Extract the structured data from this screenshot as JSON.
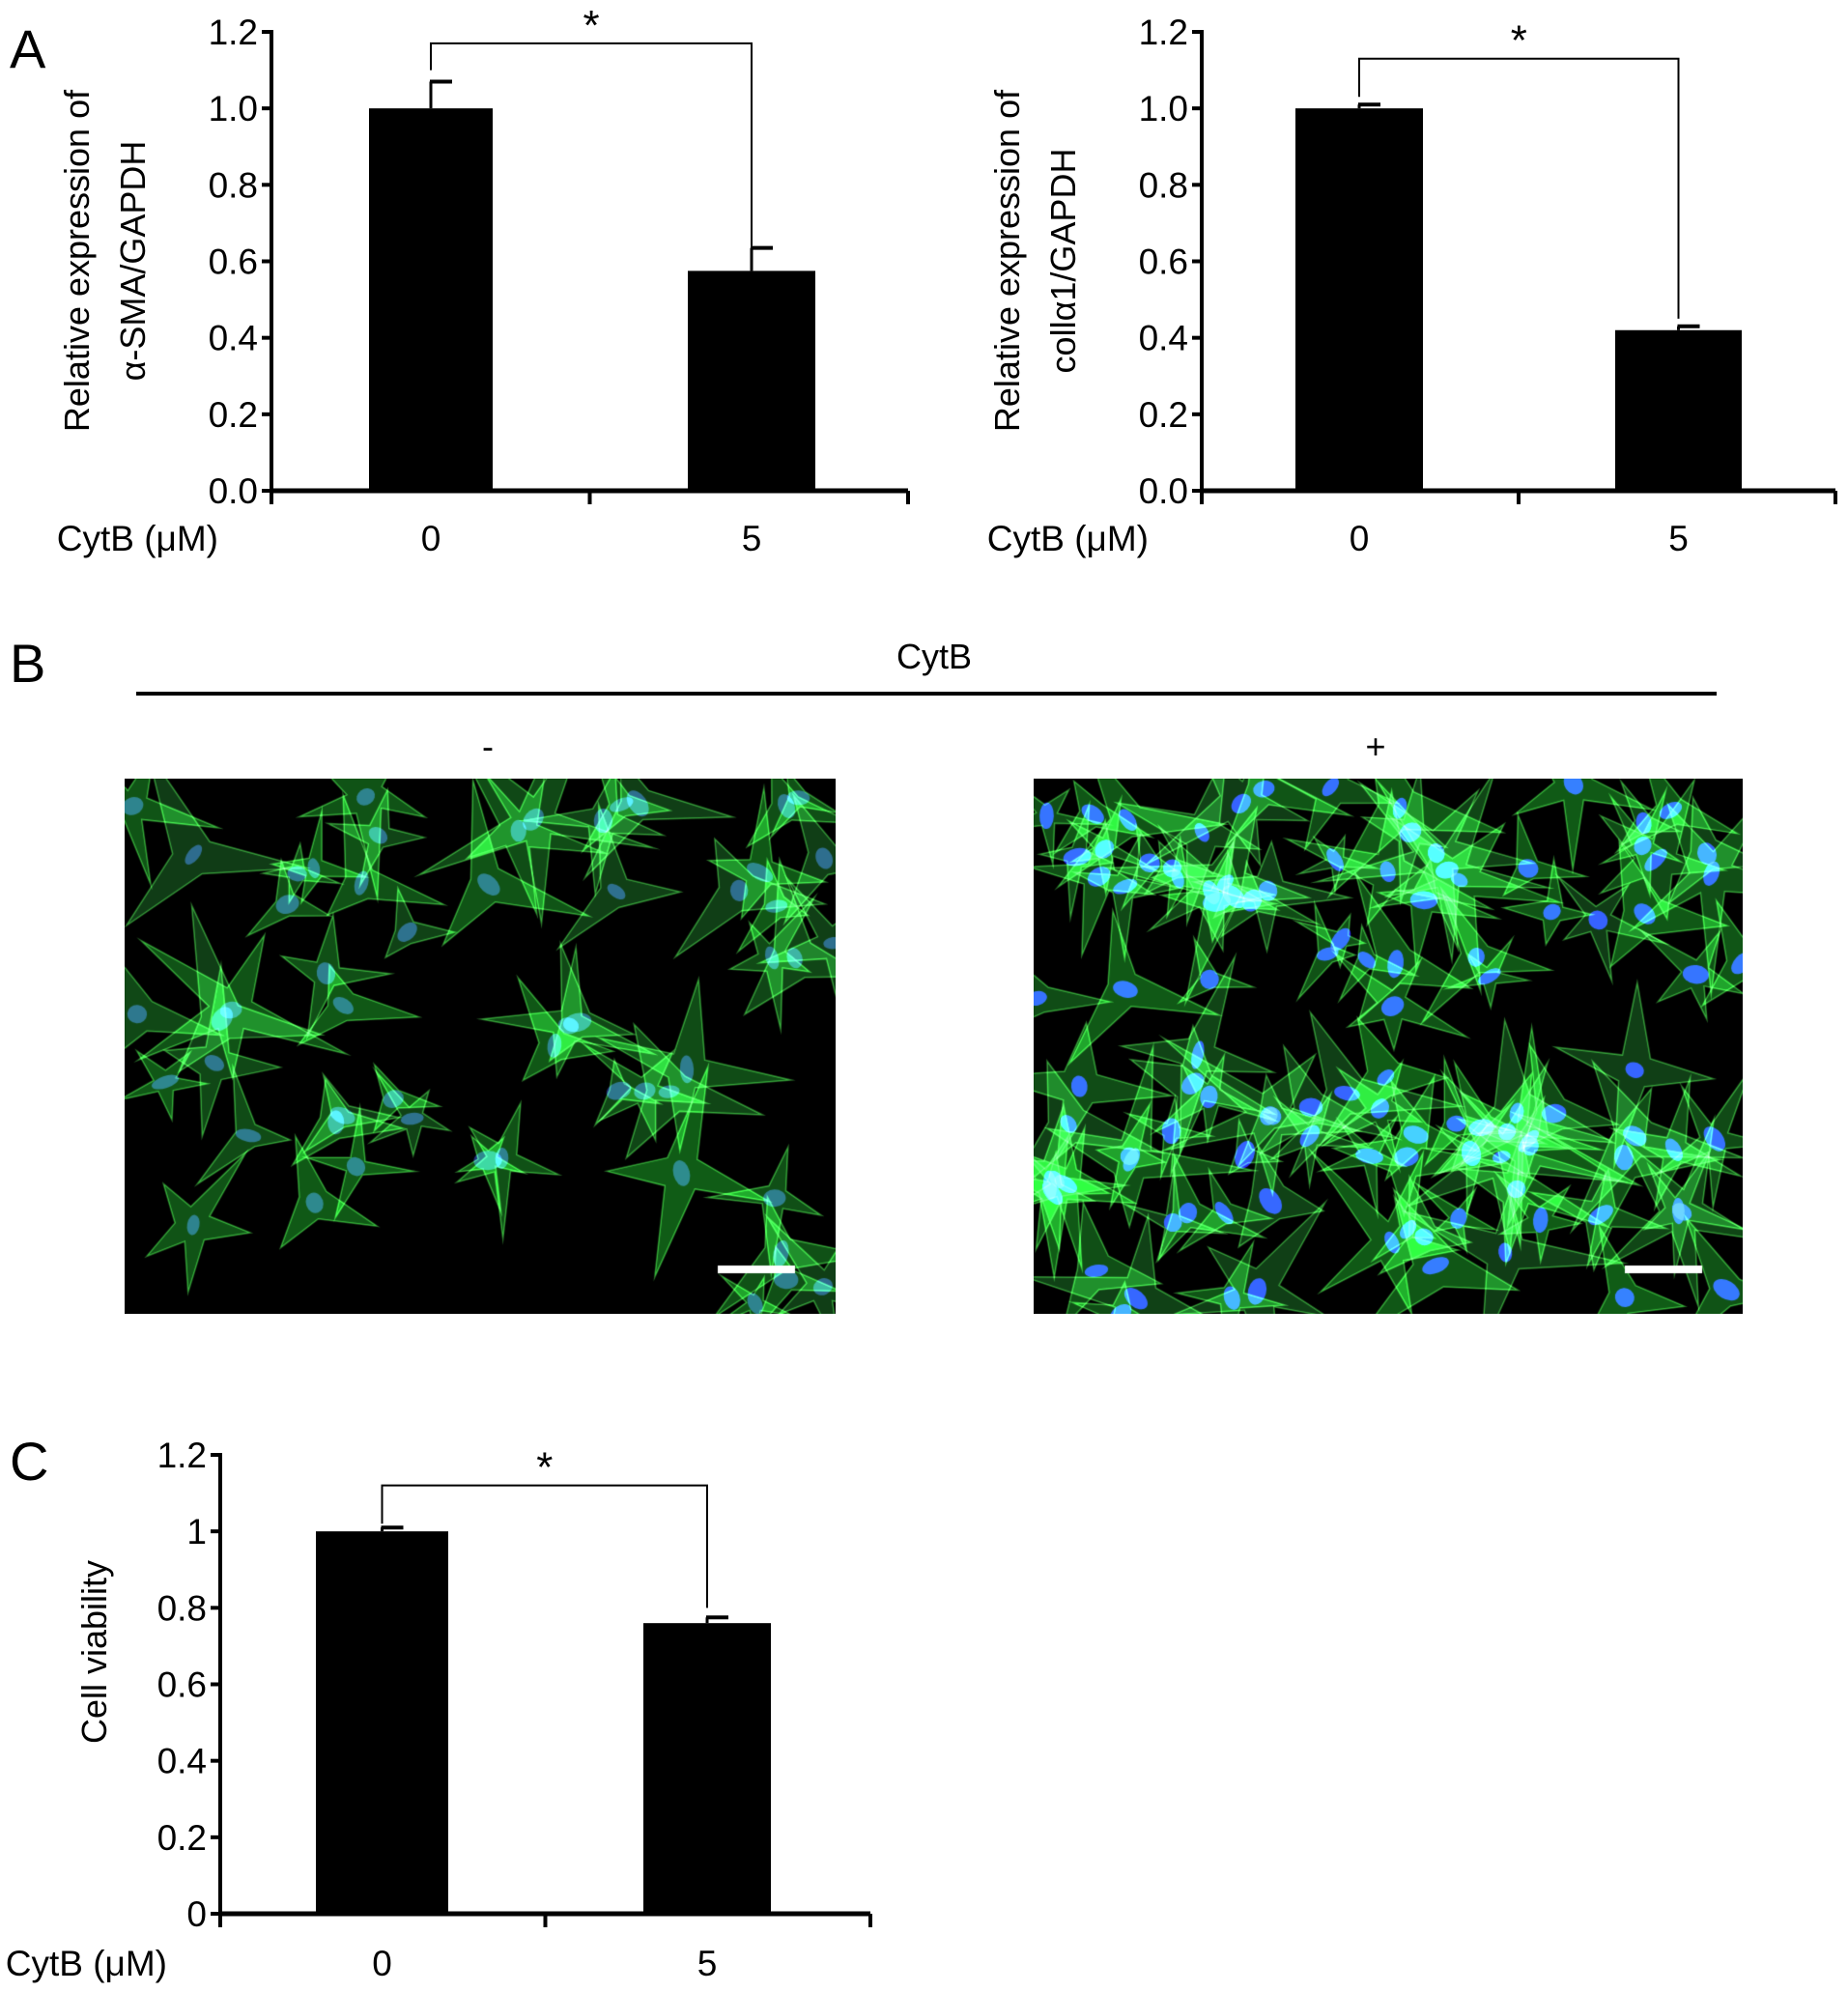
{
  "panels": {
    "a": "A",
    "b": "B",
    "c": "C"
  },
  "colors": {
    "bar": "#000000",
    "actin": "#2fbf3a",
    "nuclei": "#2a2aff",
    "scalebar": "#ffffff"
  },
  "chart_data": [
    {
      "type": "bar",
      "panel": "A",
      "ylabel_lines": [
        "Relative expression of",
        "α-SMA/GAPDH"
      ],
      "xlabel": "CytB (μM)",
      "categories": [
        "0",
        "5"
      ],
      "values": [
        1.0,
        0.575
      ],
      "errors": [
        0.07,
        0.06
      ],
      "ylim": [
        0,
        1.2
      ],
      "yticks": [
        "0.0",
        "0.2",
        "0.4",
        "0.6",
        "0.8",
        "1.0",
        "1.2"
      ],
      "significance": {
        "label": "*",
        "between": [
          "0",
          "5"
        ]
      },
      "grid": false
    },
    {
      "type": "bar",
      "panel": "A",
      "ylabel_lines": [
        "Relative expression of",
        "collα1/GAPDH"
      ],
      "xlabel": "CytB (μM)",
      "categories": [
        "0",
        "5"
      ],
      "values": [
        1.0,
        0.42
      ],
      "errors": [
        0.01,
        0.01
      ],
      "ylim": [
        0,
        1.2
      ],
      "yticks": [
        "0.0",
        "0.2",
        "0.4",
        "0.6",
        "0.8",
        "1.0",
        "1.2"
      ],
      "significance": {
        "label": "*",
        "between": [
          "0",
          "5"
        ]
      },
      "grid": false
    },
    {
      "type": "bar",
      "panel": "C",
      "ylabel_lines": [
        "Cell viability"
      ],
      "xlabel": "CytB (μM)",
      "categories": [
        "0",
        "5"
      ],
      "values": [
        1.0,
        0.76
      ],
      "errors": [
        0.01,
        0.015
      ],
      "ylim": [
        0,
        1.2
      ],
      "yticks": [
        "0",
        "0.2",
        "0.4",
        "0.6",
        "0.8",
        "1",
        "1.2"
      ],
      "significance": {
        "label": "*",
        "between": [
          "0",
          "5"
        ]
      },
      "grid": false
    }
  ],
  "microscopy": {
    "treatment_label": "CytB",
    "conditions": [
      "-",
      "+"
    ]
  }
}
